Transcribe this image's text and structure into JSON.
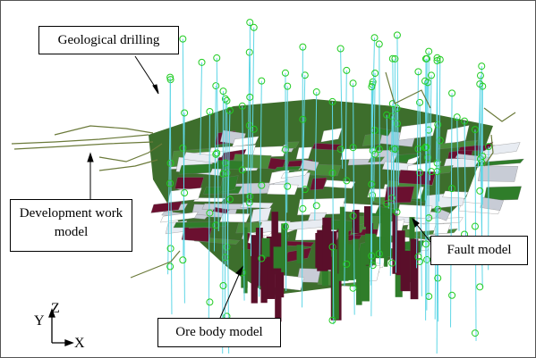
{
  "callouts": {
    "geological_drilling": "Geological drilling",
    "development_work_model": "Development work model",
    "fault_model": "Fault model",
    "ore_body_model": "Ore body model"
  },
  "axes": {
    "z": "Z",
    "y": "Y",
    "x": "X"
  }
}
